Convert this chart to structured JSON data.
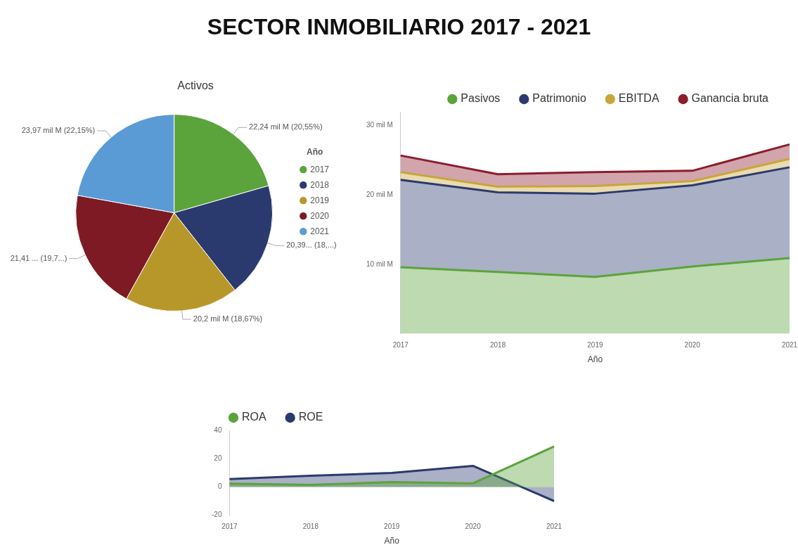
{
  "chart_data": [
    {
      "type": "other",
      "title": "SECTOR INMOBILIARIO 2017 - 2021"
    },
    {
      "type": "pie",
      "title": "Activos",
      "legend_title": "Año",
      "legend": "right",
      "categories": [
        "2017",
        "2018",
        "2019",
        "2020",
        "2021"
      ],
      "values": [
        22.24,
        20.39,
        20.2,
        21.41,
        23.97
      ],
      "colors": [
        "#5ba33b",
        "#2b3a6e",
        "#b8972a",
        "#7d1a24",
        "#5b9bd5"
      ],
      "value_labels": [
        "22,24 mil M (20,55%)",
        "20,39... (18,...)",
        "20,2 mil M (18,67%)",
        "21,41 ... (19,7...)",
        "23,97 mil M (22,15%)"
      ]
    },
    {
      "type": "area",
      "stacked": true,
      "xlabel": "Año",
      "legend": "top right",
      "grid": false,
      "categories": [
        "2017",
        "2018",
        "2019",
        "2020",
        "2021"
      ],
      "ylim": [
        0,
        32
      ],
      "yticks": [
        {
          "value": 10,
          "label": "10 mil M"
        },
        {
          "value": 20,
          "label": "20 mil M"
        },
        {
          "value": 30,
          "label": "30 mil M"
        }
      ],
      "series": [
        {
          "name": "Pasivos",
          "color": "#5ba33b",
          "values": [
            9.6,
            8.9,
            8.2,
            9.7,
            10.9
          ]
        },
        {
          "name": "Patrimonio",
          "color": "#2b3a6e",
          "values": [
            12.6,
            11.5,
            12.0,
            11.7,
            13.1
          ]
        },
        {
          "name": "EBITDA",
          "color": "#c9a53a",
          "values": [
            1.1,
            0.8,
            1.1,
            0.6,
            1.2
          ]
        },
        {
          "name": "Ganancia bruta",
          "color": "#8b1d2c",
          "values": [
            2.4,
            1.8,
            2.0,
            1.5,
            2.1
          ]
        }
      ]
    },
    {
      "type": "area",
      "xlabel": "Año",
      "legend": "top left",
      "grid": false,
      "categories": [
        "2017",
        "2018",
        "2019",
        "2020",
        "2021"
      ],
      "ylim": [
        -20,
        40
      ],
      "yticks": [
        -20,
        0,
        20,
        40
      ],
      "series": [
        {
          "name": "ROA",
          "color": "#5ba33b",
          "values": [
            2.3,
            1.4,
            3.4,
            2.5,
            28.6
          ]
        },
        {
          "name": "ROE",
          "color": "#2b3a6e",
          "values": [
            5.6,
            7.9,
            9.9,
            14.9,
            -10
          ]
        }
      ]
    }
  ]
}
